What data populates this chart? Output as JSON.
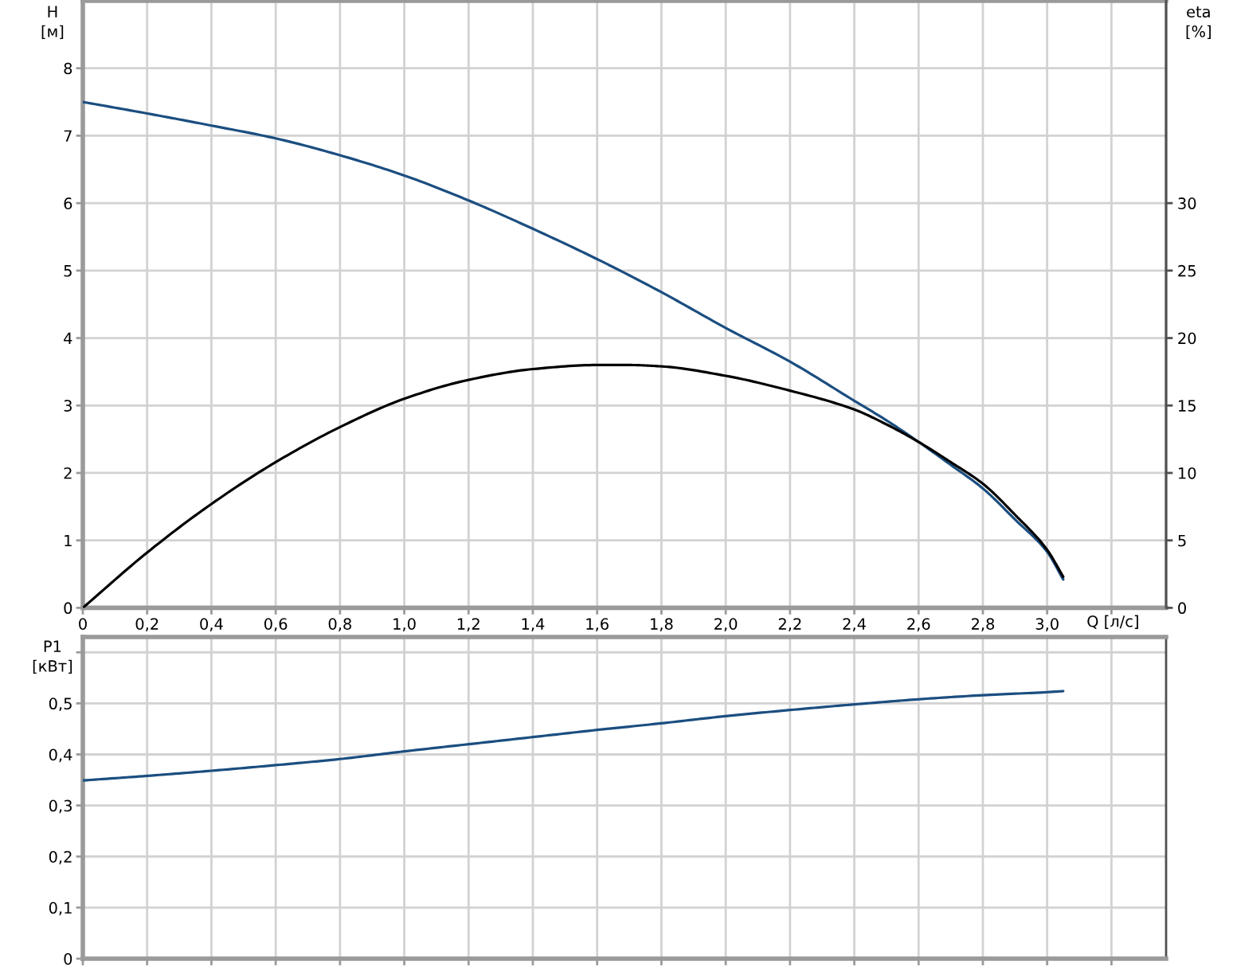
{
  "chart_data": [
    {
      "type": "line",
      "xlabel": "Q [л/с]",
      "ylabel": "H [м]",
      "y2label": "eta [%]",
      "xlim": [
        0,
        3.37
      ],
      "xticks": [
        0,
        {
          "value": 0.2,
          "label": "0,2"
        },
        {
          "value": 0.4,
          "label": "0,4"
        },
        {
          "value": 0.6,
          "label": "0,6"
        },
        {
          "value": 0.8,
          "label": "0,8"
        },
        {
          "value": 1.0,
          "label": "1,0"
        },
        {
          "value": 1.2,
          "label": "1,2"
        },
        {
          "value": 1.4,
          "label": "1,4"
        },
        {
          "value": 1.6,
          "label": "1,6"
        },
        {
          "value": 1.8,
          "label": "1,8"
        },
        {
          "value": 2.0,
          "label": "2,0"
        },
        {
          "value": 2.2,
          "label": "2,2"
        },
        {
          "value": 2.4,
          "label": "2,4"
        },
        {
          "value": 2.6,
          "label": "2,6"
        },
        {
          "value": 2.8,
          "label": "2,8"
        },
        {
          "value": 3.0,
          "label": "3,0"
        },
        {
          "value": 3.2,
          "label": null
        }
      ],
      "ylim": [
        0,
        9
      ],
      "yticks": [
        0,
        1,
        2,
        3,
        4,
        5,
        6,
        7,
        8
      ],
      "y2lim": [
        0,
        45
      ],
      "y2ticks": [
        0,
        5,
        10,
        15,
        20,
        25,
        30
      ],
      "grid": true,
      "line_style": "solid",
      "series": [
        {
          "color": "#1b4e80",
          "x": [
            0,
            0.2,
            0.4,
            0.6,
            0.8,
            1.0,
            1.2,
            1.4,
            1.6,
            1.8,
            2.0,
            2.2,
            2.4,
            2.5,
            2.6,
            2.7,
            2.8,
            2.9,
            3.0,
            3.05
          ],
          "values": [
            7.5,
            7.33,
            7.15,
            6.96,
            6.71,
            6.41,
            6.04,
            5.62,
            5.17,
            4.68,
            4.15,
            3.65,
            3.07,
            2.78,
            2.46,
            2.12,
            1.77,
            1.31,
            0.83,
            0.42
          ]
        },
        {
          "color": "#000000",
          "axis": "y2",
          "x": [
            0,
            0.2,
            0.4,
            0.6,
            0.8,
            1.0,
            1.2,
            1.4,
            1.6,
            1.7,
            1.8,
            2.0,
            2.2,
            2.4,
            2.5,
            2.6,
            2.7,
            2.8,
            2.9,
            3.0,
            3.05
          ],
          "values": [
            0,
            4.1,
            7.7,
            10.8,
            13.4,
            15.5,
            16.9,
            17.7,
            18.0,
            18.0,
            17.9,
            17.2,
            16.1,
            14.7,
            13.6,
            12.3,
            10.8,
            9.2,
            6.9,
            4.3,
            2.3
          ]
        }
      ]
    },
    {
      "type": "line",
      "ylabel": "P1 [кВт]",
      "xlim": [
        0,
        3.37
      ],
      "xticks": [
        {
          "value": 0,
          "label": null
        },
        {
          "value": 0.2,
          "label": null
        },
        {
          "value": 0.4,
          "label": null
        },
        {
          "value": 0.6,
          "label": null
        },
        {
          "value": 0.8,
          "label": null
        },
        {
          "value": 1.0,
          "label": null
        },
        {
          "value": 1.2,
          "label": null
        },
        {
          "value": 1.4,
          "label": null
        },
        {
          "value": 1.6,
          "label": null
        },
        {
          "value": 1.8,
          "label": null
        },
        {
          "value": 2.0,
          "label": null
        },
        {
          "value": 2.2,
          "label": null
        },
        {
          "value": 2.4,
          "label": null
        },
        {
          "value": 2.6,
          "label": null
        },
        {
          "value": 2.8,
          "label": null
        },
        {
          "value": 3.0,
          "label": null
        },
        {
          "value": 3.2,
          "label": null
        }
      ],
      "ylim": [
        0,
        0.63
      ],
      "yticks": [
        0,
        {
          "value": 0.1,
          "label": "0,1"
        },
        {
          "value": 0.2,
          "label": "0,2"
        },
        {
          "value": 0.3,
          "label": "0,3"
        },
        {
          "value": 0.4,
          "label": "0,4"
        },
        {
          "value": 0.5,
          "label": "0,5"
        },
        {
          "value": 0.6,
          "label": null
        }
      ],
      "tick_labels": "y",
      "grid": true,
      "line_style": "solid",
      "series": [
        {
          "color": "#1b4e80",
          "x": [
            0,
            0.2,
            0.4,
            0.6,
            0.8,
            1.0,
            1.2,
            1.4,
            1.6,
            1.8,
            2.0,
            2.2,
            2.4,
            2.6,
            2.8,
            3.0,
            3.05
          ],
          "values": [
            0.349,
            0.358,
            0.368,
            0.379,
            0.391,
            0.406,
            0.42,
            0.434,
            0.448,
            0.461,
            0.475,
            0.487,
            0.498,
            0.508,
            0.516,
            0.522,
            0.524
          ]
        }
      ]
    }
  ]
}
